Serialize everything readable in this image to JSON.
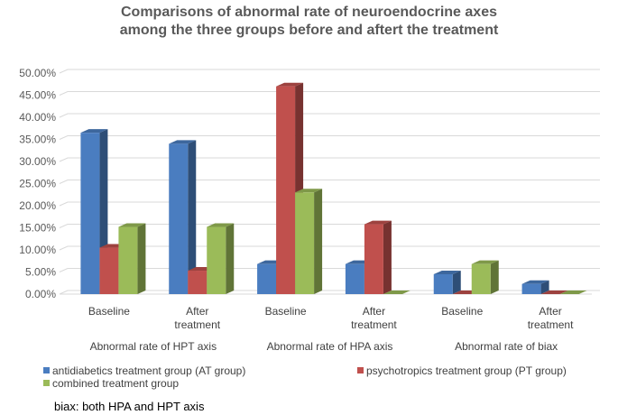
{
  "chart_data": {
    "type": "bar",
    "title_line1": "Comparisons of abnormal rate of neuroendocrine axes",
    "title_line2": "among the three groups before and aftert the treatment",
    "categories": [
      {
        "group": "Abnormal rate of HPT axis",
        "sub": [
          "Baseline"
        ]
      },
      {
        "group": "Abnormal rate of HPT axis",
        "sub": [
          "After",
          "treatment"
        ]
      },
      {
        "group": "Abnormal rate of HPA axis",
        "sub": [
          "Baseline"
        ]
      },
      {
        "group": "Abnormal rate of HPA axis",
        "sub": [
          "After",
          "treatment"
        ]
      },
      {
        "group": "Abnormal rate of biax",
        "sub": [
          "Baseline"
        ]
      },
      {
        "group": "Abnormal rate of biax",
        "sub": [
          "After",
          "treatment"
        ]
      }
    ],
    "groups": [
      "Abnormal rate of HPT axis",
      "Abnormal rate of HPA axis",
      "Abnormal rate of biax"
    ],
    "series": [
      {
        "name": "antidiabetics treatment group (AT group)",
        "color": "#4a7dc0",
        "values": [
          36.5,
          34.0,
          6.8,
          6.8,
          4.5,
          2.3
        ]
      },
      {
        "name": "psychotropics treatment group (PT group)",
        "color": "#c0504d",
        "values": [
          10.5,
          5.3,
          47.0,
          15.8,
          0,
          0
        ]
      },
      {
        "name": "combined treatment group",
        "color": "#9bbb59",
        "values": [
          15.2,
          15.2,
          23.0,
          0,
          6.8,
          0
        ]
      }
    ],
    "ylim": [
      0,
      50
    ],
    "yticks": [
      "0.00%",
      "5.00%",
      "10.00%",
      "15.00%",
      "20.00%",
      "25.00%",
      "30.00%",
      "35.00%",
      "40.00%",
      "45.00%",
      "50.00%"
    ],
    "grid": true,
    "legend_position": "bottom"
  },
  "footnote": "biax: both HPA and HPT axis"
}
